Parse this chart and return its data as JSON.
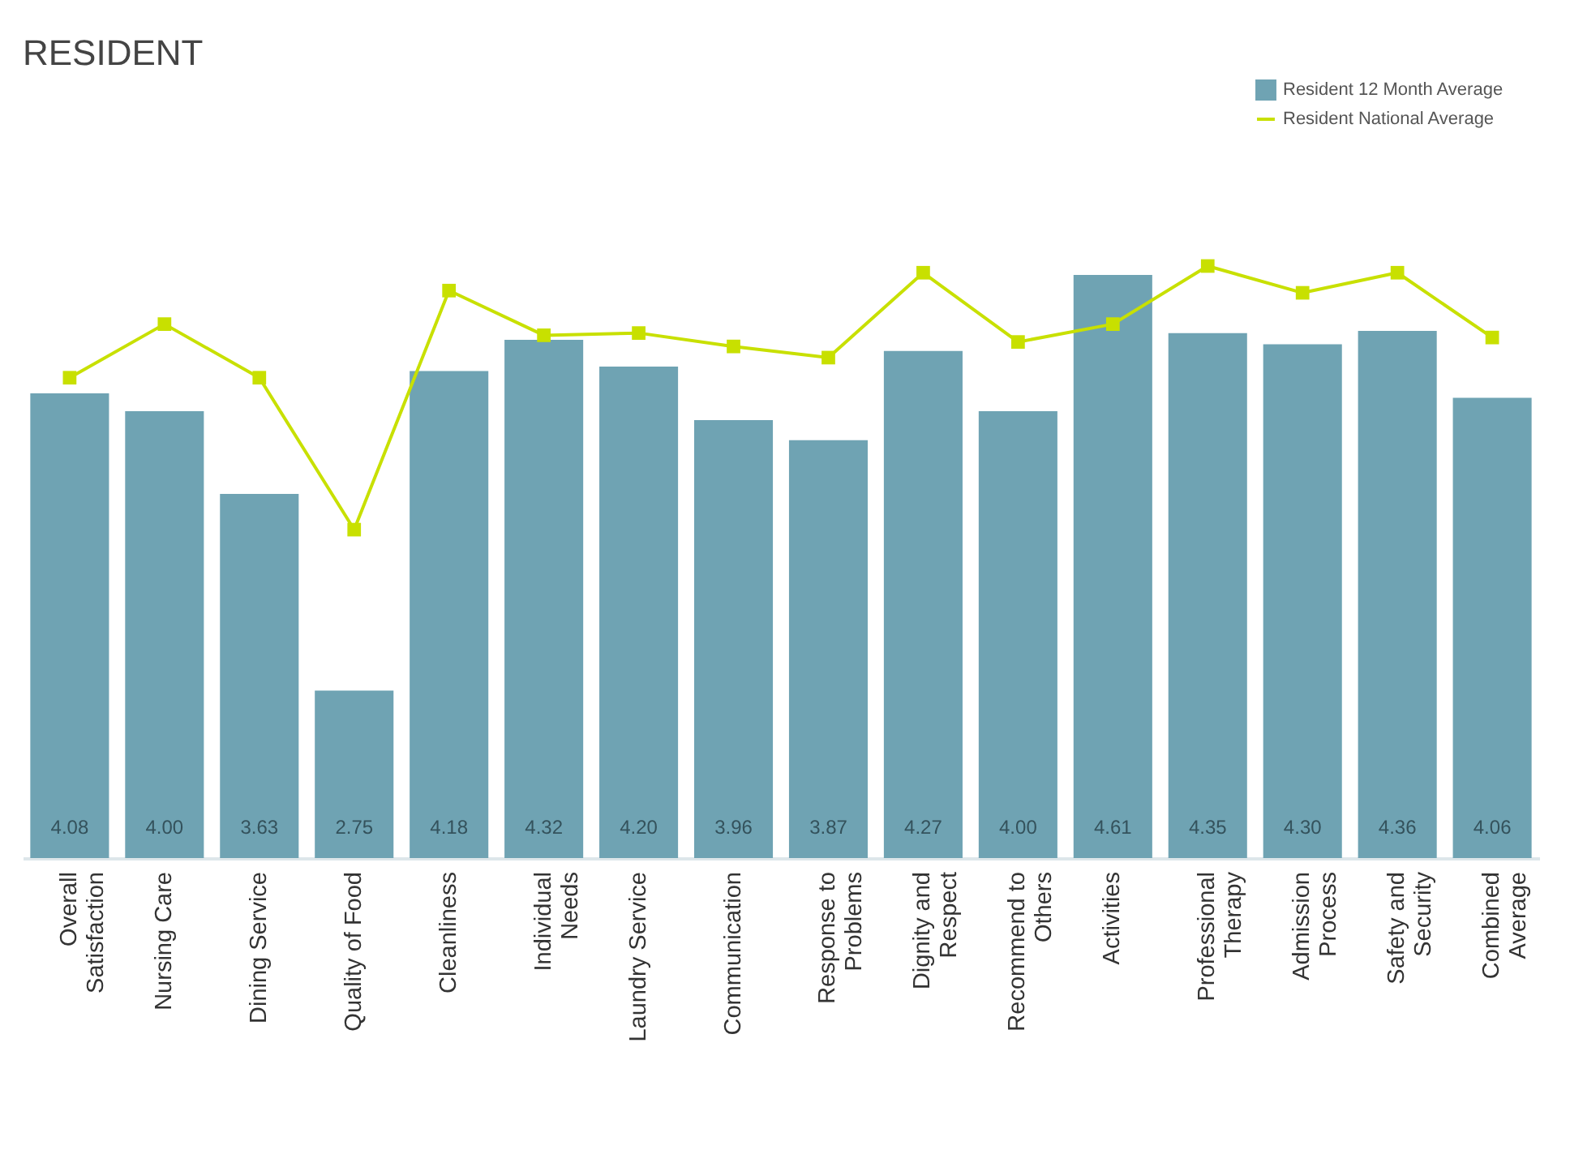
{
  "chart_data": {
    "type": "bar",
    "title": "RESIDENT",
    "categories": [
      "Overall\nSatisfaction",
      "Nursing Care",
      "Dining Service",
      "Quality of Food",
      "Cleanliness",
      "Individual\nNeeds",
      "Laundry Service",
      "Communication",
      "Response to\nProblems",
      "Dignity and\nRespect",
      "Recommend to\nOthers",
      "Activities",
      "Professional\nTherapy",
      "Admission\nProcess",
      "Safety and\nSecurity",
      "Combined\nAverage"
    ],
    "series": [
      {
        "name": "Resident 12 Month Average",
        "type": "bar",
        "color": "#6fa3b3",
        "values": [
          4.08,
          4.0,
          3.63,
          2.75,
          4.18,
          4.32,
          4.2,
          3.96,
          3.87,
          4.27,
          4.0,
          4.61,
          4.35,
          4.3,
          4.36,
          4.06
        ],
        "value_labels": [
          "4.08",
          "4.00",
          "3.63",
          "2.75",
          "4.18",
          "4.32",
          "4.20",
          "3.96",
          "3.87",
          "4.27",
          "4.00",
          "4.61",
          "4.35",
          "4.30",
          "4.36",
          "4.06"
        ]
      },
      {
        "name": "Resident National Average",
        "type": "line",
        "color": "#c8e000",
        "values": [
          4.15,
          4.39,
          4.15,
          3.47,
          4.54,
          4.34,
          4.35,
          4.29,
          4.24,
          4.62,
          4.31,
          4.39,
          4.65,
          4.53,
          4.62,
          4.33
        ]
      }
    ],
    "ylim": [
      2.0,
      4.65
    ],
    "legend": "top right",
    "marker": "square",
    "line_style": "solid"
  }
}
